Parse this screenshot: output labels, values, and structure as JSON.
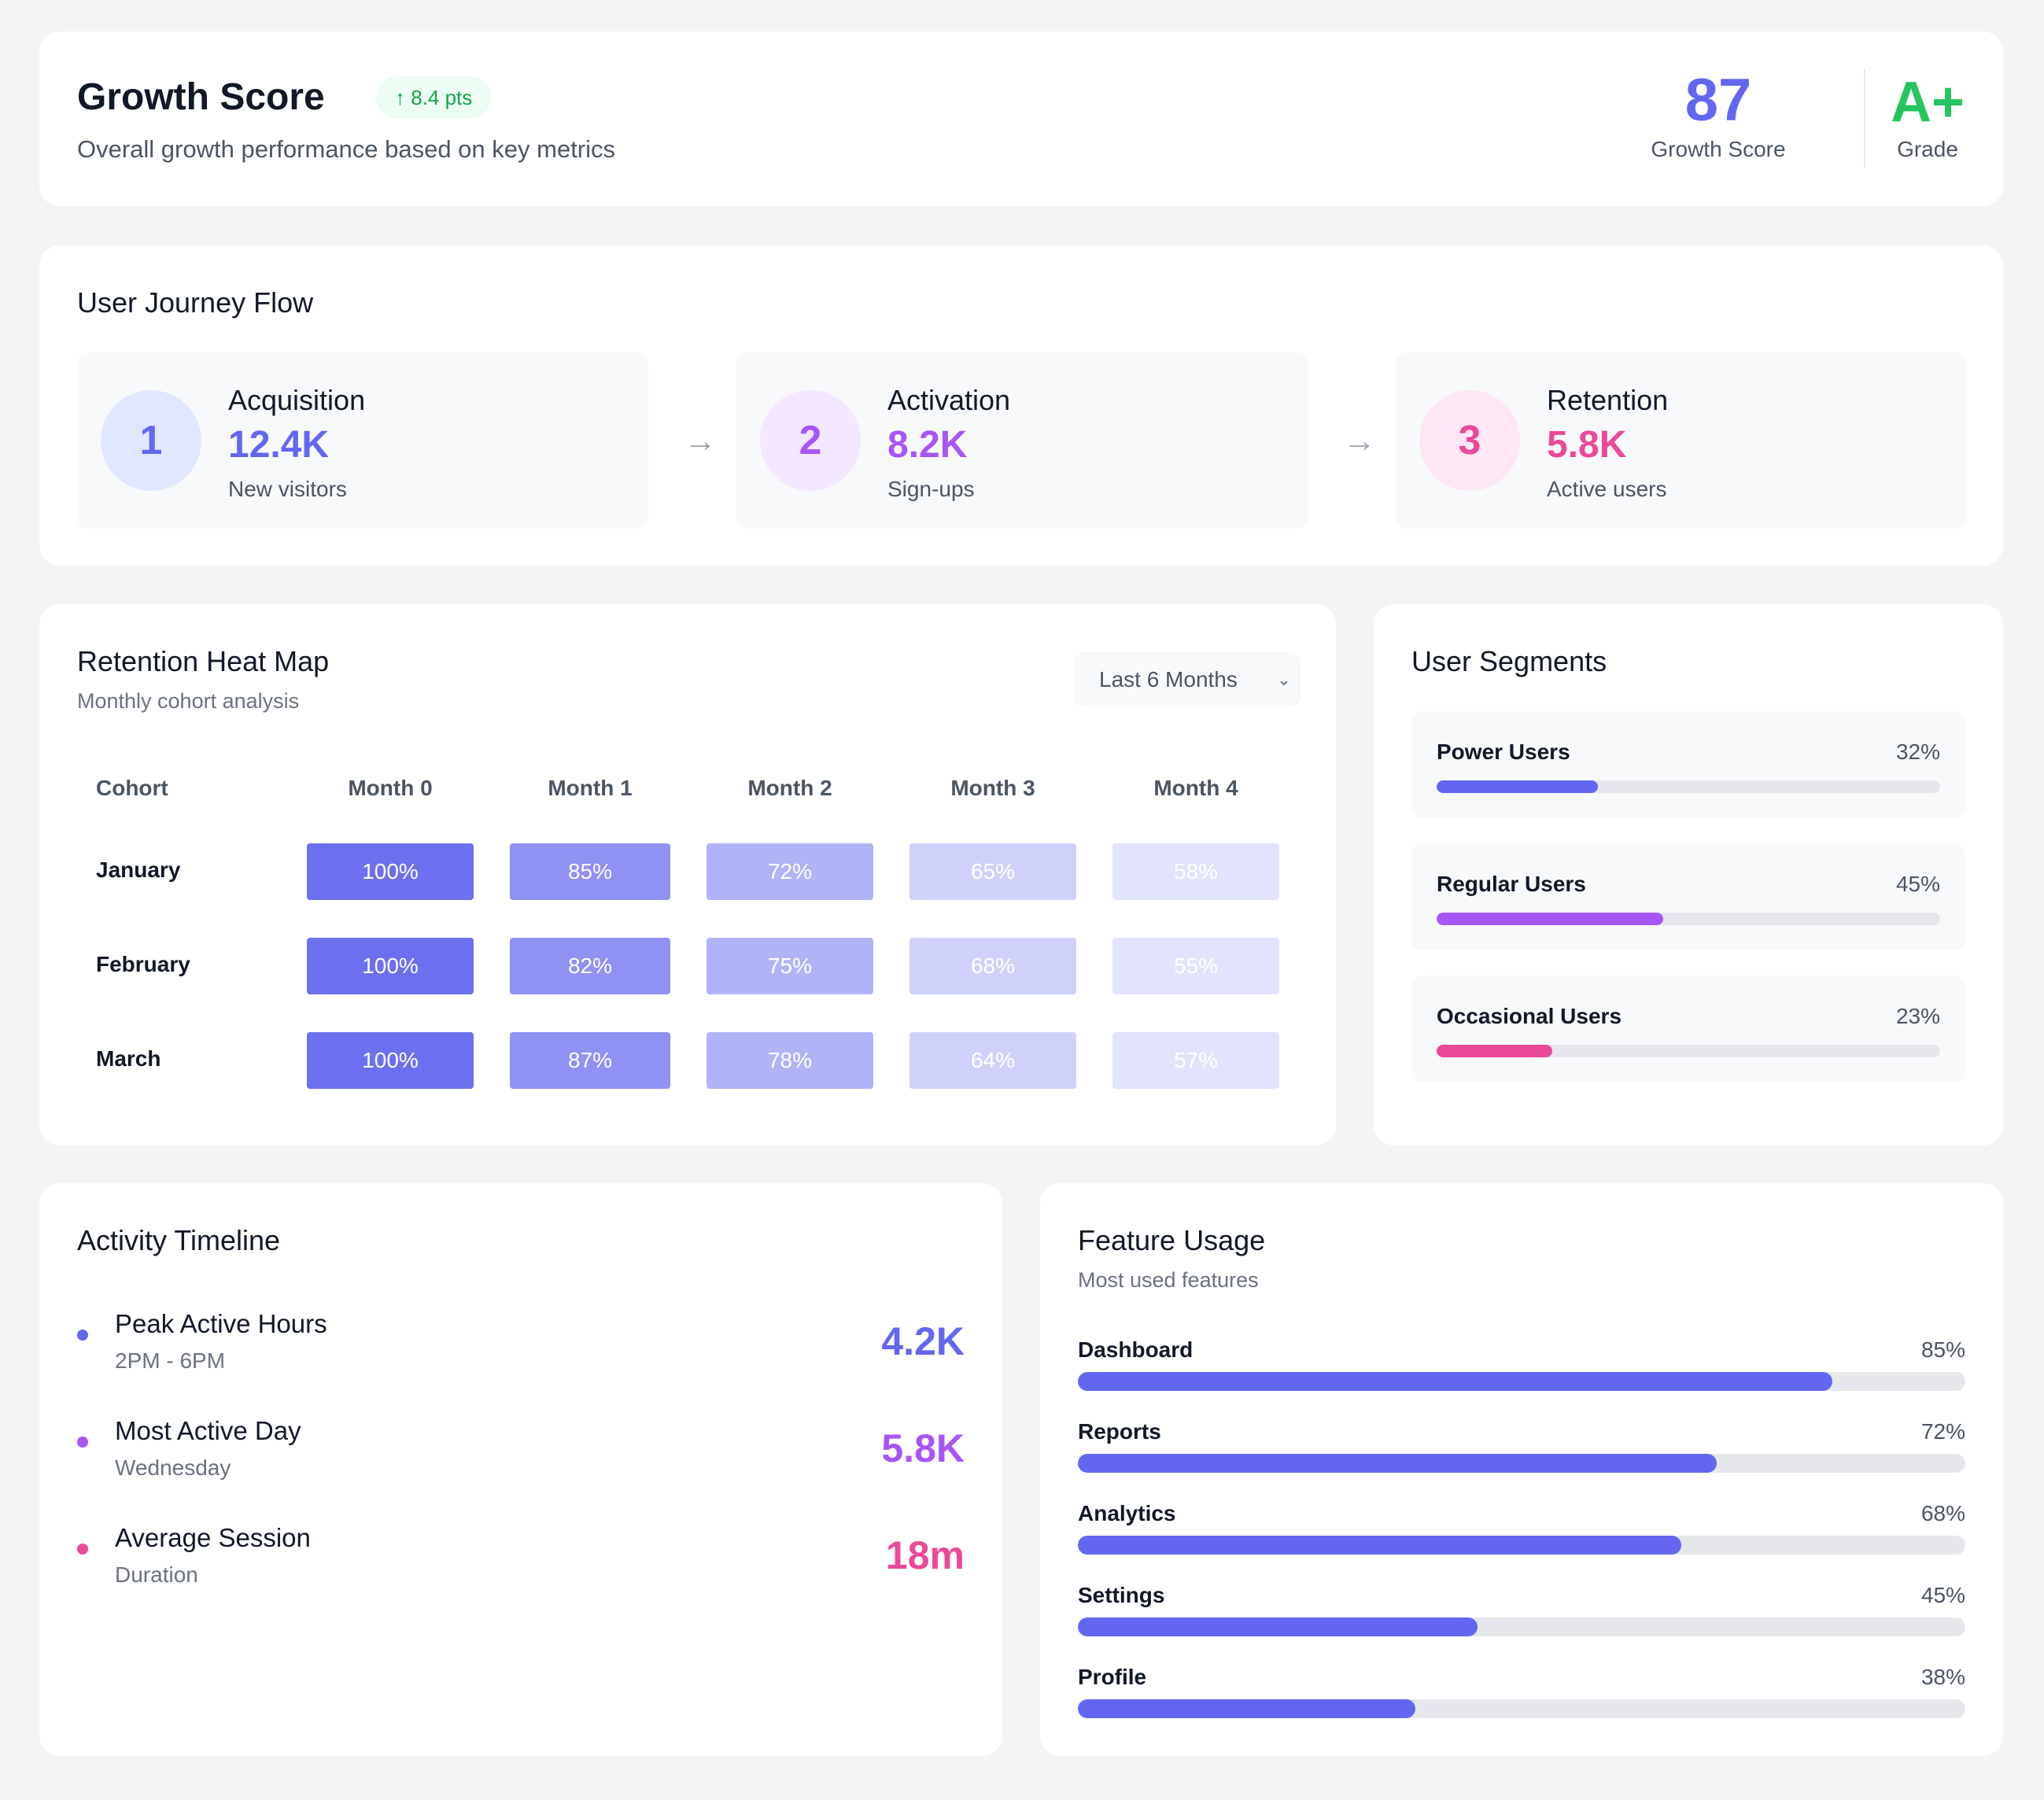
{
  "header": {
    "title": "Growth Score",
    "badge": "↑ 8.4 pts",
    "subtitle": "Overall growth performance based on key metrics",
    "score_value": "87",
    "score_label": "Growth Score",
    "grade_value": "A+",
    "grade_label": "Grade"
  },
  "journey": {
    "title": "User Journey Flow",
    "arrow": "→",
    "steps": [
      {
        "number": "1",
        "name": "Acquisition",
        "value": "12.4K",
        "label": "New visitors",
        "color": "#6366f1",
        "bg": "#e0e7ff"
      },
      {
        "number": "2",
        "name": "Activation",
        "value": "8.2K",
        "label": "Sign-ups",
        "color": "#a855f7",
        "bg": "#f3e8ff"
      },
      {
        "number": "3",
        "name": "Retention",
        "value": "5.8K",
        "label": "Active users",
        "color": "#ec4899",
        "bg": "#fce7f3"
      }
    ]
  },
  "heatmap": {
    "title": "Retention Heat Map",
    "subtitle": "Monthly cohort analysis",
    "dropdown": "Last 6 Months",
    "columns": [
      "Cohort",
      "Month 0",
      "Month 1",
      "Month 2",
      "Month 3",
      "Month 4"
    ],
    "rows": [
      {
        "cohort": "January",
        "values": [
          "100%",
          "85%",
          "72%",
          "65%",
          "58%"
        ]
      },
      {
        "cohort": "February",
        "values": [
          "100%",
          "82%",
          "75%",
          "68%",
          "55%"
        ]
      },
      {
        "cohort": "March",
        "values": [
          "100%",
          "87%",
          "78%",
          "64%",
          "57%"
        ]
      }
    ],
    "column_colors": [
      "#6d70ee",
      "#8f91f3",
      "#b1b3f7",
      "#d0d1fa",
      "#e2e3fc"
    ]
  },
  "segments": {
    "title": "User Segments",
    "items": [
      {
        "name": "Power Users",
        "pct": "32%",
        "value": 32,
        "color": "#6366f1"
      },
      {
        "name": "Regular Users",
        "pct": "45%",
        "value": 45,
        "color": "#a855f7"
      },
      {
        "name": "Occasional Users",
        "pct": "23%",
        "value": 23,
        "color": "#ec4899"
      }
    ]
  },
  "activity": {
    "title": "Activity Timeline",
    "items": [
      {
        "name": "Peak Active Hours",
        "sub": "2PM - 6PM",
        "value": "4.2K",
        "color": "#6366f1"
      },
      {
        "name": "Most Active Day",
        "sub": "Wednesday",
        "value": "5.8K",
        "color": "#a855f7"
      },
      {
        "name": "Average Session",
        "sub": "Duration",
        "value": "18m",
        "color": "#ec4899"
      }
    ]
  },
  "features": {
    "title": "Feature Usage",
    "subtitle": "Most used features",
    "items": [
      {
        "name": "Dashboard",
        "pct": "85%",
        "value": 85
      },
      {
        "name": "Reports",
        "pct": "72%",
        "value": 72
      },
      {
        "name": "Analytics",
        "pct": "68%",
        "value": 68
      },
      {
        "name": "Settings",
        "pct": "45%",
        "value": 45
      },
      {
        "name": "Profile",
        "pct": "38%",
        "value": 38
      }
    ]
  }
}
